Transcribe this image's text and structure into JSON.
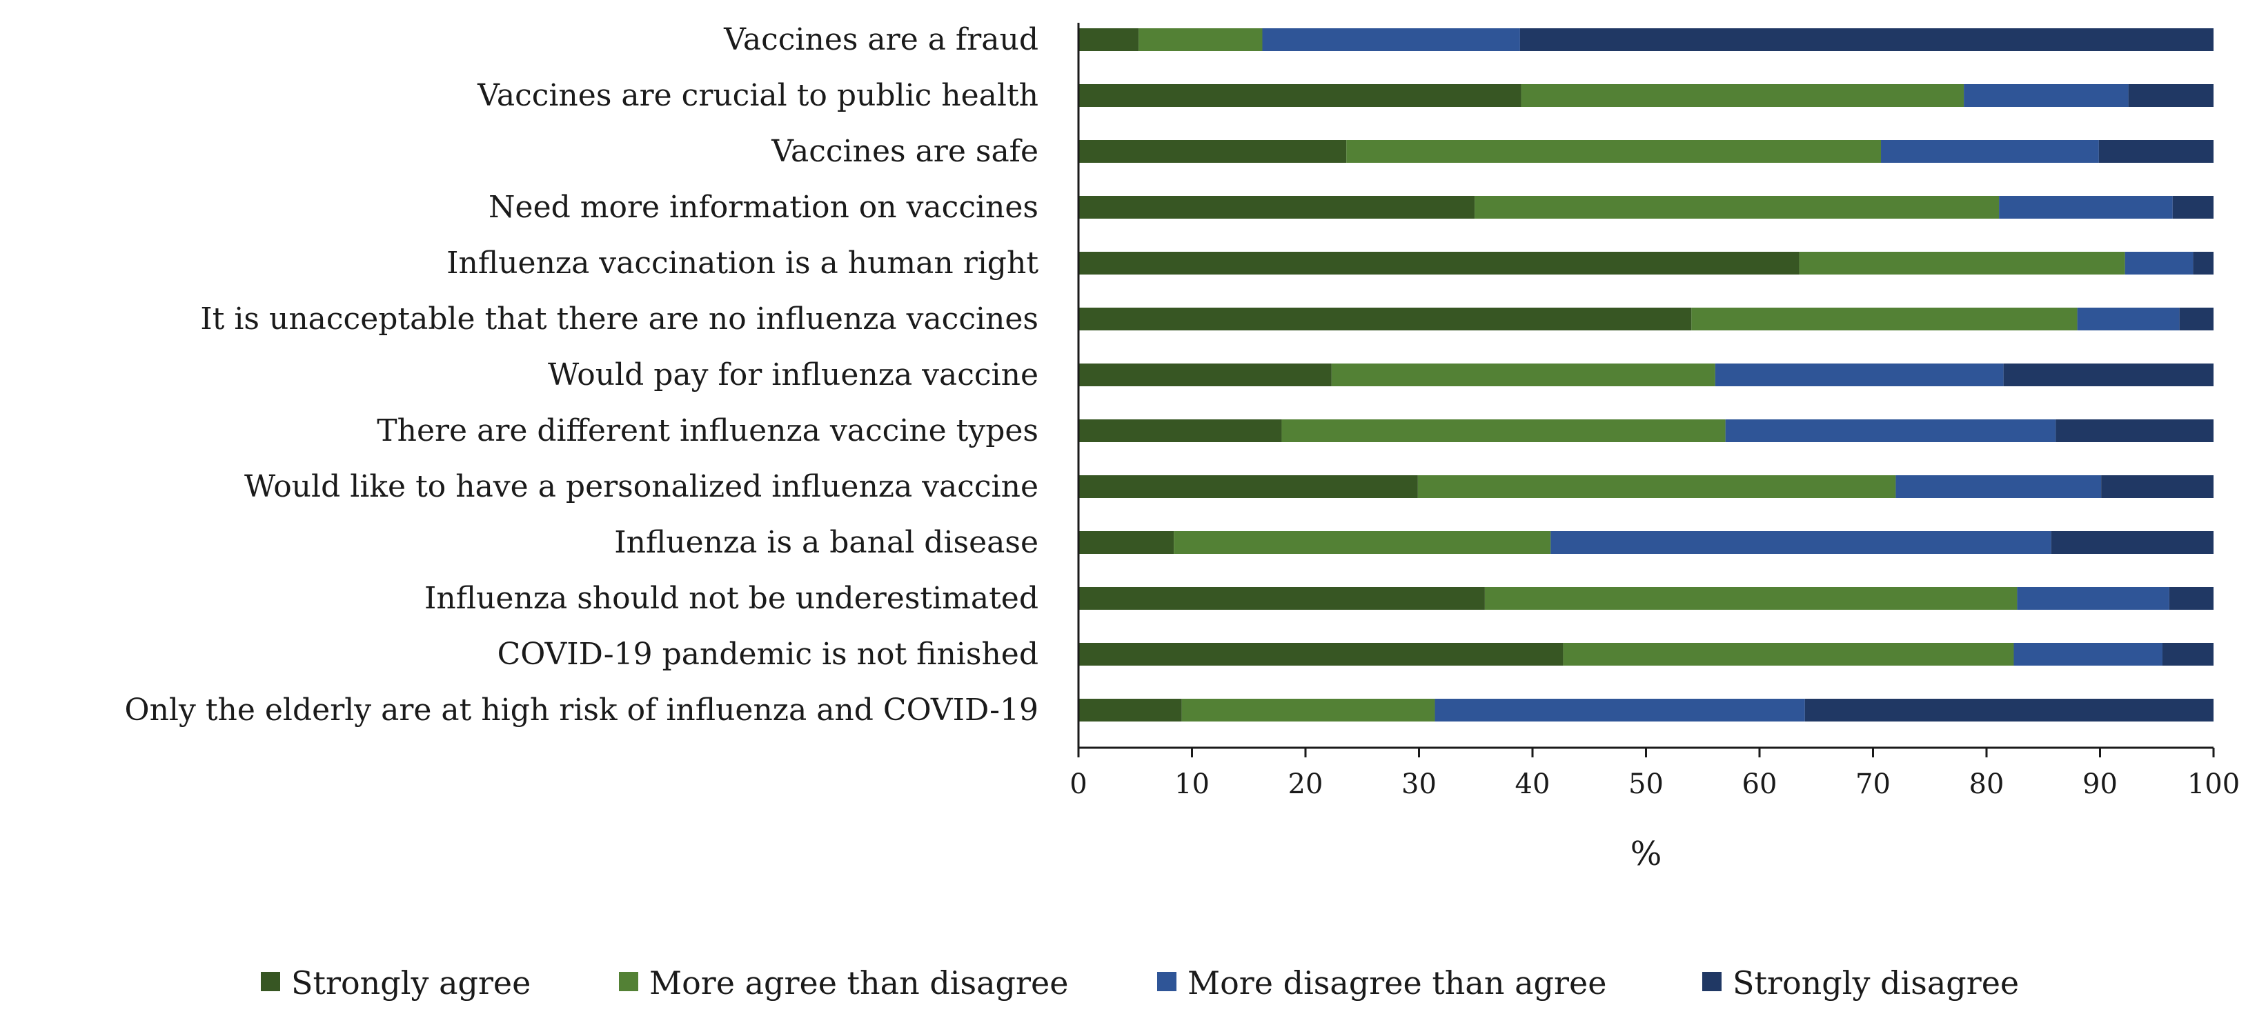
{
  "chart_data": {
    "type": "bar",
    "orientation": "horizontal",
    "stacked": true,
    "categories": [
      "Vaccines are a fraud",
      "Vaccines are crucial to public health",
      "Vaccines are safe",
      "Need more information on vaccines",
      "Influenza vaccination is a human right",
      "It is unacceptable that there are no influenza vaccines",
      "Would pay for influenza vaccine",
      "There are different influenza vaccine types",
      "Would like to have a personalized influenza vaccine",
      "Influenza is a banal disease",
      "Influenza should not be underestimated",
      "COVID-19 pandemic is not finished",
      "Only the elderly are at high risk of influenza and COVID-19"
    ],
    "series": [
      {
        "name": "Strongly agree",
        "color": "#375623",
        "values": [
          5.3,
          39.0,
          23.6,
          34.9,
          63.5,
          54.0,
          22.3,
          17.9,
          29.9,
          8.4,
          35.8,
          42.7,
          9.1
        ]
      },
      {
        "name": "More agree than disagree",
        "color": "#538135",
        "values": [
          10.9,
          39.0,
          47.1,
          46.2,
          28.7,
          34.0,
          33.8,
          39.1,
          42.1,
          33.2,
          46.9,
          39.7,
          22.3
        ]
      },
      {
        "name": "More disagree than agree",
        "color": "#2f5597",
        "values": [
          22.7,
          14.5,
          19.2,
          15.3,
          6.0,
          9.0,
          25.4,
          29.1,
          18.1,
          44.1,
          13.4,
          13.1,
          32.6
        ]
      },
      {
        "name": "Strongly disagree",
        "color": "#203864",
        "values": [
          61.1,
          7.5,
          10.1,
          3.6,
          1.8,
          3.0,
          18.5,
          13.9,
          9.9,
          14.3,
          3.9,
          4.5,
          36.0
        ]
      }
    ],
    "xlabel": "%",
    "xlim": [
      0,
      100
    ],
    "xticks": [
      0,
      10,
      20,
      30,
      40,
      50,
      60,
      70,
      80,
      90,
      100
    ],
    "grid": false,
    "legend_position": "bottom"
  }
}
